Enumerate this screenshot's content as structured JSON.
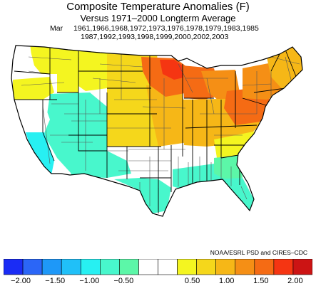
{
  "title": "Composite Temperature Anomalies (F)",
  "subtitle": "Versus 1971–2000 Longterm Average",
  "month": "Mar",
  "years_line1": "1961,1966,1968,1972,1973,1976,1978,1979,1983,1985",
  "years_line2": "1987,1992,1993,1998,1999,2000,2002,2003",
  "credit": "NOAA/ESRL PSD and CIRES–CDC",
  "colors": {
    "bins": [
      "#1a2cf5",
      "#2b66f7",
      "#1e98f8",
      "#20c0f8",
      "#27f0f2",
      "#48f7cc",
      "#5cf7a8",
      "#ffffff",
      "#ffffff",
      "#f4f520",
      "#f5d71b",
      "#f6b717",
      "#f58f15",
      "#f56b14",
      "#f53512",
      "#cc1414"
    ],
    "state_border": "#000000",
    "division_border": "#555555"
  },
  "colorbar": {
    "tick_labels": [
      "−2.00",
      "−1.50",
      "−1.00",
      "−0.50",
      "0.50",
      "1.00",
      "1.50",
      "2.00"
    ],
    "tick_values": [
      -2.0,
      -1.5,
      -1.0,
      -0.5,
      0.5,
      1.0,
      1.5,
      2.0
    ],
    "min": -2.25,
    "max": 2.25,
    "bin_width": 0.25
  },
  "anomaly_regions": [
    {
      "region": "Washington west",
      "bin": 7
    },
    {
      "region": "Washington east",
      "bin": 9
    },
    {
      "region": "Oregon",
      "bin": 8
    },
    {
      "region": "Idaho north",
      "bin": 9
    },
    {
      "region": "Montana",
      "bin": 9
    },
    {
      "region": "Northern Plains",
      "bin": 10
    },
    {
      "region": "Minnesota",
      "bin": 13
    },
    {
      "region": "Minnesota north",
      "bin": 14
    },
    {
      "region": "Wisconsin",
      "bin": 13
    },
    {
      "region": "Michigan",
      "bin": 12
    },
    {
      "region": "Iowa",
      "bin": 11
    },
    {
      "region": "Ohio Valley",
      "bin": 11
    },
    {
      "region": "Pennsylvania",
      "bin": 13
    },
    {
      "region": "New York",
      "bin": 12
    },
    {
      "region": "New England",
      "bin": 11
    },
    {
      "region": "Central Plains",
      "bin": 10
    },
    {
      "region": "Great Basin",
      "bin": 5
    },
    {
      "region": "California coast",
      "bin": 7
    },
    {
      "region": "Southern California",
      "bin": 4
    },
    {
      "region": "Southwest",
      "bin": 5
    },
    {
      "region": "Texas",
      "bin": 5
    },
    {
      "region": "Gulf Coast",
      "bin": 5
    },
    {
      "region": "Georgia",
      "bin": 6
    },
    {
      "region": "Florida",
      "bin": 5
    },
    {
      "region": "Carolinas",
      "bin": 9
    }
  ]
}
